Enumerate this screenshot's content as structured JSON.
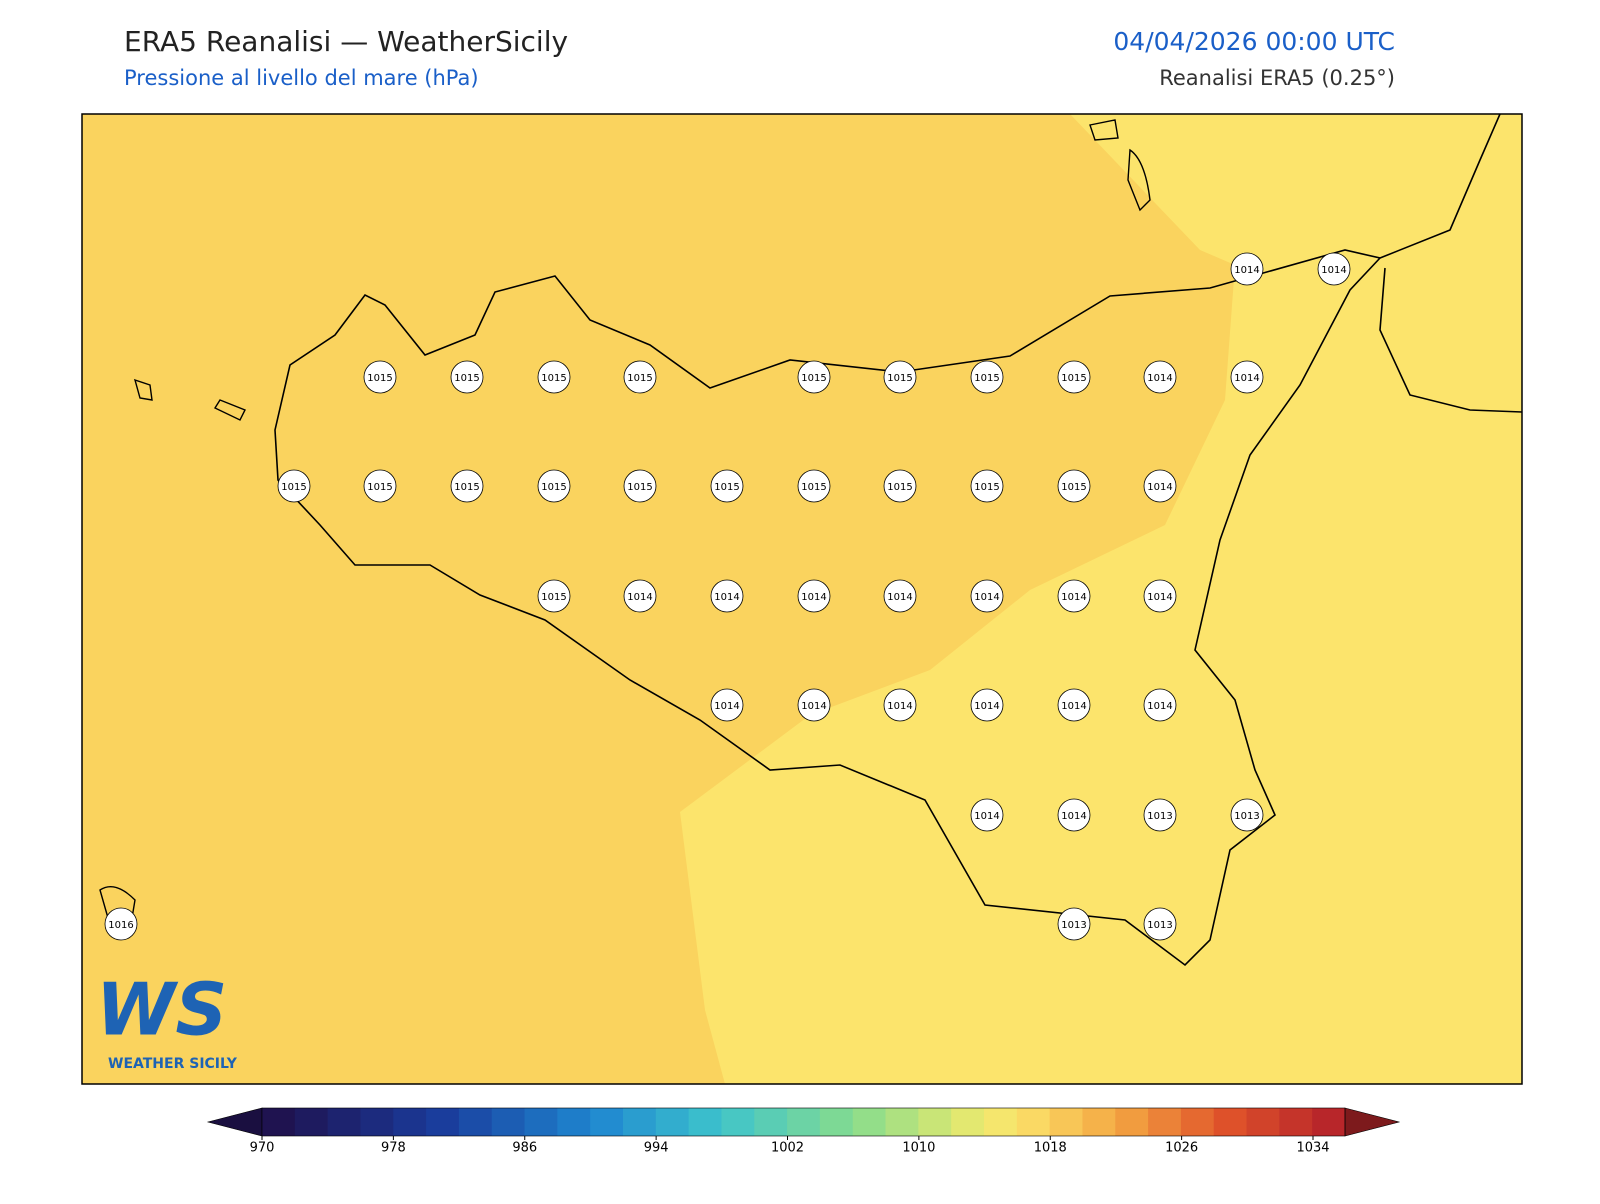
{
  "header": {
    "title": "ERA5 Reanalisi — WeatherSicily",
    "subtitle": "Pressione al livello del mare (hPa)",
    "datetime": "04/04/2026 00:00 UTC",
    "source": "Reanalisi ERA5 (0.25°)"
  },
  "stations": [
    "1014",
    "1014",
    "1015",
    "1015",
    "1015",
    "1015",
    "1015",
    "1015",
    "1015",
    "1015",
    "1014",
    "1014",
    "1015",
    "1015",
    "1015",
    "1015",
    "1015",
    "1015",
    "1015",
    "1015",
    "1015",
    "1015",
    "1014",
    "1015",
    "1014",
    "1014",
    "1014",
    "1014",
    "1014",
    "1014",
    "1014",
    "1014",
    "1014",
    "1014",
    "1014",
    "1014",
    "1014",
    "1014",
    "1014",
    "1013",
    "1013",
    "1016",
    "1013",
    "1013"
  ],
  "colorbar": {
    "ticks": [
      970,
      978,
      986,
      994,
      1002,
      1010,
      1018,
      1026,
      1034
    ]
  },
  "logo": {
    "mark": "WS",
    "text": "WEATHER SICILY"
  }
}
